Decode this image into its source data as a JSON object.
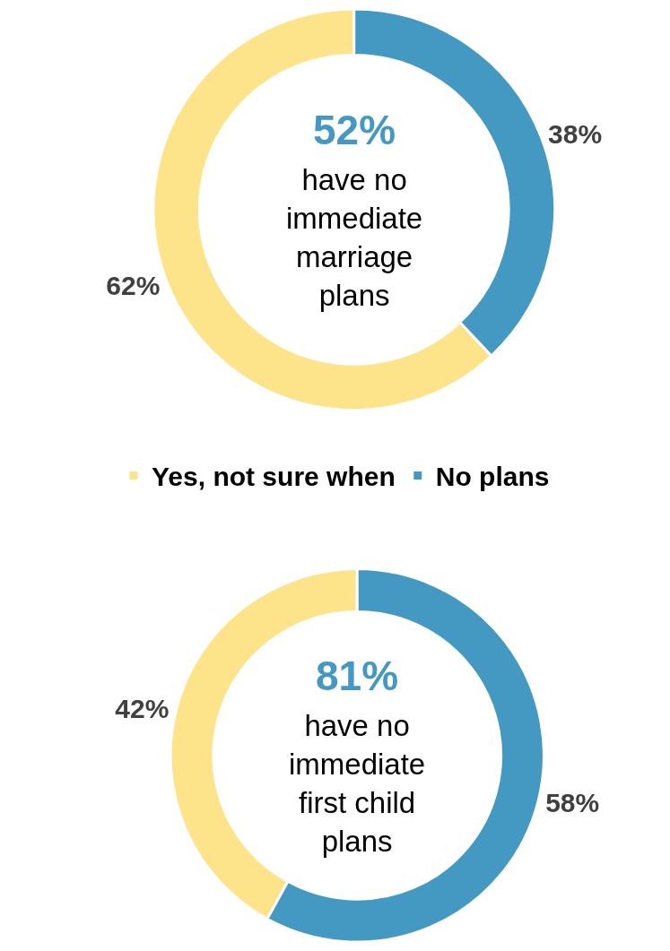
{
  "chart_data": [
    {
      "type": "donut",
      "categories": [
        "Yes, not sure when",
        "No plans"
      ],
      "values": [
        62,
        38
      ],
      "colors": [
        "#fde38a",
        "#4499c2"
      ],
      "value_labels": [
        "62%",
        "38%"
      ],
      "annotations": [
        "52%",
        "have no\nimmediate\nmarriage\nplans"
      ],
      "legend": "bottom"
    },
    {
      "type": "donut",
      "categories": [
        null,
        null
      ],
      "values": [
        42,
        58
      ],
      "colors": [
        "#fde38a",
        "#4499c2"
      ],
      "value_labels": [
        "42%",
        "58%"
      ],
      "annotations": [
        "81%",
        "have no\nimmediate\nfirst child\nplans"
      ]
    }
  ]
}
